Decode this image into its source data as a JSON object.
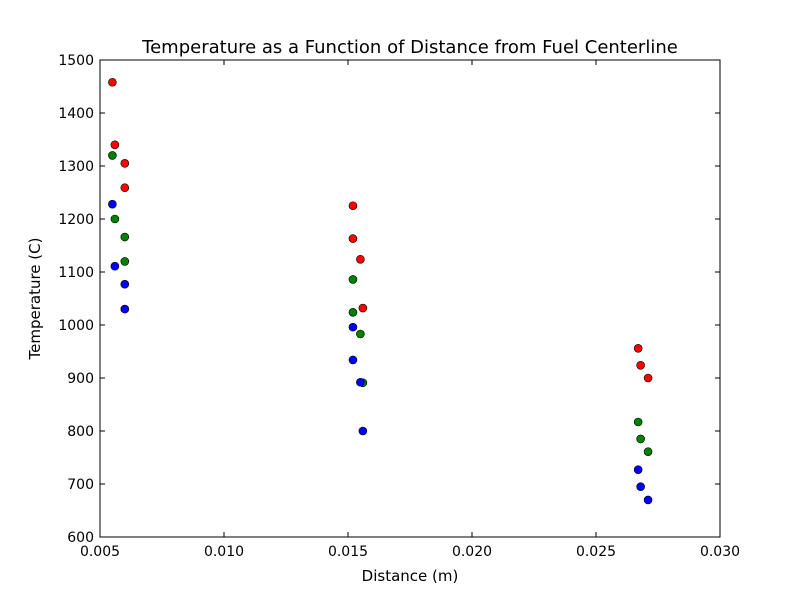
{
  "chart_data": {
    "type": "scatter",
    "title": "Temperature as a Function of Distance from Fuel Centerline",
    "xlabel": "Distance (m)",
    "ylabel": "Temperature (C)",
    "xlim": [
      0.005,
      0.03
    ],
    "ylim": [
      600,
      1500
    ],
    "xticks": [
      0.005,
      0.01,
      0.015,
      0.02,
      0.025,
      0.03
    ],
    "xtick_labels": [
      "0.005",
      "0.010",
      "0.015",
      "0.020",
      "0.025",
      "0.030"
    ],
    "yticks": [
      600,
      700,
      800,
      900,
      1000,
      1100,
      1200,
      1300,
      1400,
      1500
    ],
    "ytick_labels": [
      "600",
      "700",
      "800",
      "900",
      "1000",
      "1100",
      "1200",
      "1300",
      "1400",
      "1500"
    ],
    "grid": false,
    "series": [
      {
        "color": "#ff0000",
        "points": [
          [
            0.0055,
            1458
          ],
          [
            0.0056,
            1340
          ],
          [
            0.006,
            1305
          ],
          [
            0.006,
            1259
          ],
          [
            0.0152,
            1225
          ],
          [
            0.0152,
            1163
          ],
          [
            0.0155,
            1124
          ],
          [
            0.0156,
            1032
          ],
          [
            0.0267,
            956
          ],
          [
            0.0268,
            924
          ],
          [
            0.0271,
            900
          ]
        ]
      },
      {
        "color": "#008000",
        "points": [
          [
            0.0055,
            1320
          ],
          [
            0.0056,
            1200
          ],
          [
            0.006,
            1166
          ],
          [
            0.006,
            1120
          ],
          [
            0.0152,
            1086
          ],
          [
            0.0152,
            1024
          ],
          [
            0.0155,
            983
          ],
          [
            0.0156,
            891
          ],
          [
            0.0267,
            817
          ],
          [
            0.0268,
            785
          ],
          [
            0.0271,
            761
          ]
        ]
      },
      {
        "color": "#0000ff",
        "points": [
          [
            0.0055,
            1228
          ],
          [
            0.0056,
            1111
          ],
          [
            0.006,
            1077
          ],
          [
            0.006,
            1030
          ],
          [
            0.0152,
            996
          ],
          [
            0.0152,
            934
          ],
          [
            0.0155,
            892
          ],
          [
            0.0156,
            800
          ],
          [
            0.0267,
            727
          ],
          [
            0.0268,
            695
          ],
          [
            0.0271,
            670
          ]
        ]
      }
    ]
  }
}
